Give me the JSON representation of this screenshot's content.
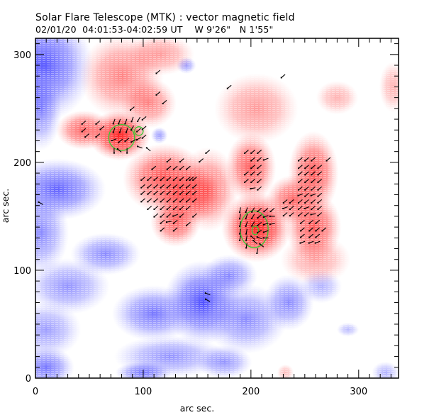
{
  "header": {
    "title": "Solar Flare Telescope (MTK) : vector magnetic field",
    "date": "02/01/20",
    "time_range": "04:01:53-04:02:59 UT",
    "position_w": "W 9'26\"",
    "position_n": "N 1'55\""
  },
  "chart_data": {
    "type": "heatmap",
    "title": "Solar Flare Telescope (MTK) : vector magnetic field",
    "subtitle": "02/01/20  04:01:53-04:02:59 UT    W 9'26\"   N 1'55\"",
    "xlabel": "arc sec.",
    "ylabel": "arc sec.",
    "xlim": [
      0,
      337
    ],
    "ylim": [
      0,
      315
    ],
    "x_ticks_major": [
      0,
      100,
      200,
      300
    ],
    "y_ticks_major": [
      0,
      100,
      200,
      300
    ],
    "x_tick_labels": [
      "0",
      "100",
      "200",
      "300"
    ],
    "y_tick_labels": [
      "0",
      "100",
      "200",
      "300"
    ],
    "minor_tick_step": 10,
    "colors": {
      "positive_polarity": "#ff3030",
      "negative_polarity": "#4040ff",
      "contour": "#33cc33",
      "vector": "#000000",
      "frame": "#000000"
    },
    "positive_regions": [
      {
        "x": 78,
        "y": 225,
        "rx": 22,
        "ry": 18,
        "strength": 1.0
      },
      {
        "x": 45,
        "y": 230,
        "rx": 20,
        "ry": 14,
        "strength": 0.7
      },
      {
        "x": 80,
        "y": 280,
        "rx": 30,
        "ry": 30,
        "strength": 0.55
      },
      {
        "x": 115,
        "y": 300,
        "rx": 25,
        "ry": 15,
        "strength": 0.45
      },
      {
        "x": 105,
        "y": 255,
        "rx": 20,
        "ry": 18,
        "strength": 0.55
      },
      {
        "x": 120,
        "y": 185,
        "rx": 30,
        "ry": 25,
        "strength": 0.8
      },
      {
        "x": 140,
        "y": 170,
        "rx": 25,
        "ry": 22,
        "strength": 0.8
      },
      {
        "x": 130,
        "y": 145,
        "rx": 18,
        "ry": 18,
        "strength": 0.7
      },
      {
        "x": 160,
        "y": 175,
        "rx": 22,
        "ry": 30,
        "strength": 0.6
      },
      {
        "x": 205,
        "y": 140,
        "rx": 25,
        "ry": 25,
        "strength": 1.0
      },
      {
        "x": 200,
        "y": 195,
        "rx": 18,
        "ry": 25,
        "strength": 0.75
      },
      {
        "x": 205,
        "y": 250,
        "rx": 30,
        "ry": 25,
        "strength": 0.45
      },
      {
        "x": 240,
        "y": 165,
        "rx": 20,
        "ry": 18,
        "strength": 0.7
      },
      {
        "x": 258,
        "y": 190,
        "rx": 18,
        "ry": 30,
        "strength": 0.75
      },
      {
        "x": 258,
        "y": 140,
        "rx": 20,
        "ry": 25,
        "strength": 0.75
      },
      {
        "x": 260,
        "y": 110,
        "rx": 25,
        "ry": 18,
        "strength": 0.4
      },
      {
        "x": 280,
        "y": 260,
        "rx": 15,
        "ry": 12,
        "strength": 0.35
      },
      {
        "x": 332,
        "y": 270,
        "rx": 10,
        "ry": 18,
        "strength": 0.35
      },
      {
        "x": 232,
        "y": 5,
        "rx": 6,
        "ry": 6,
        "strength": 0.3
      }
    ],
    "negative_regions": [
      {
        "x": 8,
        "y": 290,
        "rx": 35,
        "ry": 40,
        "strength": 0.85
      },
      {
        "x": 5,
        "y": 250,
        "rx": 15,
        "ry": 30,
        "strength": 0.6
      },
      {
        "x": 20,
        "y": 175,
        "rx": 35,
        "ry": 22,
        "strength": 0.8
      },
      {
        "x": 5,
        "y": 135,
        "rx": 20,
        "ry": 30,
        "strength": 0.6
      },
      {
        "x": 65,
        "y": 115,
        "rx": 25,
        "ry": 15,
        "strength": 0.6
      },
      {
        "x": 30,
        "y": 85,
        "rx": 30,
        "ry": 20,
        "strength": 0.55
      },
      {
        "x": 10,
        "y": 45,
        "rx": 25,
        "ry": 20,
        "strength": 0.5
      },
      {
        "x": 110,
        "y": 60,
        "rx": 30,
        "ry": 20,
        "strength": 0.7
      },
      {
        "x": 155,
        "y": 70,
        "rx": 28,
        "ry": 30,
        "strength": 0.9
      },
      {
        "x": 180,
        "y": 95,
        "rx": 20,
        "ry": 15,
        "strength": 0.6
      },
      {
        "x": 195,
        "y": 55,
        "rx": 30,
        "ry": 25,
        "strength": 0.6
      },
      {
        "x": 235,
        "y": 70,
        "rx": 18,
        "ry": 20,
        "strength": 0.6
      },
      {
        "x": 125,
        "y": 20,
        "rx": 40,
        "ry": 15,
        "strength": 0.55
      },
      {
        "x": 100,
        "y": 5,
        "rx": 20,
        "ry": 8,
        "strength": 0.7
      },
      {
        "x": 175,
        "y": 15,
        "rx": 20,
        "ry": 12,
        "strength": 0.55
      },
      {
        "x": 10,
        "y": 10,
        "rx": 20,
        "ry": 15,
        "strength": 0.7
      },
      {
        "x": 265,
        "y": 85,
        "rx": 15,
        "ry": 12,
        "strength": 0.4
      },
      {
        "x": 325,
        "y": 5,
        "rx": 10,
        "ry": 8,
        "strength": 0.4
      },
      {
        "x": 115,
        "y": 225,
        "rx": 6,
        "ry": 6,
        "strength": 0.5
      },
      {
        "x": 140,
        "y": 290,
        "rx": 7,
        "ry": 6,
        "strength": 0.5
      },
      {
        "x": 212,
        "y": 150,
        "rx": 6,
        "ry": 6,
        "strength": 0.5
      },
      {
        "x": 290,
        "y": 45,
        "rx": 8,
        "ry": 5,
        "strength": 0.35
      }
    ],
    "contours": [
      {
        "x": 80,
        "y": 223,
        "rx": 12,
        "ry": 12
      },
      {
        "x": 96,
        "y": 229,
        "rx": 4,
        "ry": 4
      },
      {
        "x": 203,
        "y": 138,
        "rx": 13,
        "ry": 17
      },
      {
        "x": 204,
        "y": 137,
        "rx": 3,
        "ry": 4
      }
    ],
    "vectors": [
      [
        114,
        284,
        40
      ],
      [
        114,
        264,
        40
      ],
      [
        120,
        256,
        40
      ],
      [
        90,
        250,
        40
      ],
      [
        180,
        270,
        40
      ],
      [
        160,
        210,
        40
      ],
      [
        230,
        280,
        40
      ],
      [
        145,
        185,
        40
      ],
      [
        5,
        162,
        -30
      ],
      [
        73,
        238,
        70
      ],
      [
        78,
        238,
        70
      ],
      [
        84,
        238,
        70
      ],
      [
        90,
        240,
        70
      ],
      [
        96,
        240,
        60
      ],
      [
        101,
        241,
        40
      ],
      [
        73,
        230,
        70
      ],
      [
        79,
        230,
        70
      ],
      [
        85,
        230,
        70
      ],
      [
        90,
        232,
        60
      ],
      [
        96,
        230,
        40
      ],
      [
        101,
        232,
        40
      ],
      [
        73,
        221,
        20
      ],
      [
        79,
        220,
        40
      ],
      [
        85,
        221,
        40
      ],
      [
        91,
        220,
        30
      ],
      [
        96,
        222,
        30
      ],
      [
        101,
        224,
        40
      ],
      [
        78,
        211,
        -40
      ],
      [
        85,
        211,
        90
      ],
      [
        73,
        211,
        90
      ],
      [
        97,
        214,
        -20
      ],
      [
        105,
        212,
        -40
      ],
      [
        58,
        237,
        40
      ],
      [
        62,
        232,
        40
      ],
      [
        58,
        225,
        40
      ],
      [
        45,
        230,
        40
      ],
      [
        48,
        225,
        40
      ],
      [
        45,
        237,
        40
      ],
      [
        110,
        195,
        40
      ],
      [
        124,
        195,
        40
      ],
      [
        130,
        195,
        40
      ],
      [
        136,
        195,
        40
      ],
      [
        142,
        195,
        40
      ],
      [
        136,
        202,
        40
      ],
      [
        154,
        202,
        40
      ],
      [
        124,
        202,
        40
      ],
      [
        100,
        185,
        40
      ],
      [
        106,
        185,
        40
      ],
      [
        112,
        185,
        40
      ],
      [
        118,
        185,
        40
      ],
      [
        124,
        185,
        40
      ],
      [
        130,
        185,
        40
      ],
      [
        136,
        185,
        40
      ],
      [
        142,
        185,
        40
      ],
      [
        148,
        185,
        40
      ],
      [
        100,
        178,
        40
      ],
      [
        106,
        178,
        40
      ],
      [
        112,
        178,
        40
      ],
      [
        118,
        178,
        40
      ],
      [
        124,
        178,
        40
      ],
      [
        130,
        178,
        40
      ],
      [
        136,
        178,
        40
      ],
      [
        142,
        178,
        40
      ],
      [
        148,
        178,
        40
      ],
      [
        100,
        172,
        40
      ],
      [
        106,
        172,
        40
      ],
      [
        112,
        172,
        40
      ],
      [
        118,
        172,
        40
      ],
      [
        124,
        172,
        40
      ],
      [
        130,
        172,
        40
      ],
      [
        136,
        172,
        40
      ],
      [
        142,
        172,
        40
      ],
      [
        148,
        172,
        40
      ],
      [
        100,
        165,
        40
      ],
      [
        106,
        165,
        40
      ],
      [
        112,
        165,
        40
      ],
      [
        118,
        165,
        40
      ],
      [
        124,
        165,
        40
      ],
      [
        130,
        165,
        40
      ],
      [
        136,
        165,
        40
      ],
      [
        142,
        165,
        40
      ],
      [
        148,
        165,
        40
      ],
      [
        106,
        158,
        40
      ],
      [
        112,
        158,
        40
      ],
      [
        118,
        158,
        40
      ],
      [
        124,
        158,
        40
      ],
      [
        130,
        158,
        40
      ],
      [
        136,
        158,
        40
      ],
      [
        142,
        158,
        40
      ],
      [
        112,
        151,
        40
      ],
      [
        118,
        151,
        40
      ],
      [
        124,
        151,
        40
      ],
      [
        130,
        151,
        20
      ],
      [
        136,
        151,
        40
      ],
      [
        148,
        151,
        40
      ],
      [
        118,
        145,
        40
      ],
      [
        124,
        145,
        10
      ],
      [
        130,
        145,
        40
      ],
      [
        118,
        138,
        40
      ],
      [
        130,
        138,
        40
      ],
      [
        142,
        143,
        40
      ],
      [
        196,
        210,
        40
      ],
      [
        202,
        210,
        40
      ],
      [
        208,
        210,
        40
      ],
      [
        202,
        203,
        40
      ],
      [
        208,
        203,
        40
      ],
      [
        214,
        203,
        20
      ],
      [
        202,
        196,
        40
      ],
      [
        208,
        196,
        40
      ],
      [
        196,
        190,
        40
      ],
      [
        202,
        190,
        40
      ],
      [
        208,
        190,
        40
      ],
      [
        196,
        183,
        40
      ],
      [
        202,
        183,
        40
      ],
      [
        208,
        183,
        40
      ],
      [
        202,
        176,
        10
      ],
      [
        208,
        176,
        40
      ],
      [
        246,
        203,
        40
      ],
      [
        252,
        203,
        40
      ],
      [
        258,
        203,
        40
      ],
      [
        272,
        203,
        40
      ],
      [
        246,
        196,
        40
      ],
      [
        252,
        196,
        40
      ],
      [
        258,
        196,
        40
      ],
      [
        264,
        196,
        40
      ],
      [
        246,
        190,
        40
      ],
      [
        252,
        190,
        40
      ],
      [
        258,
        190,
        40
      ],
      [
        264,
        190,
        40
      ],
      [
        246,
        183,
        40
      ],
      [
        252,
        183,
        40
      ],
      [
        258,
        183,
        40
      ],
      [
        264,
        183,
        40
      ],
      [
        246,
        176,
        40
      ],
      [
        252,
        176,
        40
      ],
      [
        258,
        176,
        40
      ],
      [
        264,
        176,
        40
      ],
      [
        246,
        170,
        20
      ],
      [
        252,
        170,
        40
      ],
      [
        258,
        170,
        20
      ],
      [
        264,
        170,
        40
      ],
      [
        232,
        164,
        40
      ],
      [
        238,
        164,
        40
      ],
      [
        246,
        164,
        40
      ],
      [
        252,
        164,
        40
      ],
      [
        258,
        164,
        40
      ],
      [
        264,
        164,
        40
      ],
      [
        232,
        158,
        20
      ],
      [
        238,
        158,
        40
      ],
      [
        246,
        158,
        40
      ],
      [
        252,
        158,
        20
      ],
      [
        258,
        158,
        40
      ],
      [
        264,
        158,
        40
      ],
      [
        232,
        152,
        40
      ],
      [
        238,
        152,
        40
      ],
      [
        246,
        152,
        40
      ],
      [
        252,
        152,
        40
      ],
      [
        258,
        152,
        10
      ],
      [
        264,
        152,
        40
      ],
      [
        190,
        156,
        80
      ],
      [
        196,
        156,
        70
      ],
      [
        202,
        156,
        60
      ],
      [
        208,
        156,
        40
      ],
      [
        214,
        156,
        40
      ],
      [
        220,
        156,
        40
      ],
      [
        190,
        150,
        80
      ],
      [
        196,
        150,
        70
      ],
      [
        202,
        150,
        60
      ],
      [
        208,
        150,
        40
      ],
      [
        214,
        150,
        20
      ],
      [
        220,
        150,
        0
      ],
      [
        190,
        143,
        80
      ],
      [
        196,
        143,
        70
      ],
      [
        202,
        143,
        60
      ],
      [
        208,
        143,
        40
      ],
      [
        214,
        143,
        20
      ],
      [
        220,
        143,
        10
      ],
      [
        190,
        136,
        80
      ],
      [
        196,
        136,
        80
      ],
      [
        208,
        136,
        30
      ],
      [
        214,
        136,
        20
      ],
      [
        190,
        130,
        80
      ],
      [
        196,
        130,
        80
      ],
      [
        202,
        130,
        -40
      ],
      [
        208,
        130,
        -20
      ],
      [
        214,
        130,
        0
      ],
      [
        196,
        123,
        80
      ],
      [
        204,
        126,
        -40
      ],
      [
        210,
        123,
        -40
      ],
      [
        206,
        118,
        80
      ],
      [
        248,
        145,
        40
      ],
      [
        256,
        145,
        40
      ],
      [
        262,
        145,
        40
      ],
      [
        248,
        138,
        40
      ],
      [
        256,
        138,
        40
      ],
      [
        262,
        138,
        40
      ],
      [
        268,
        138,
        40
      ],
      [
        248,
        132,
        40
      ],
      [
        256,
        132,
        40
      ],
      [
        262,
        132,
        40
      ],
      [
        248,
        126,
        20
      ],
      [
        256,
        126,
        20
      ],
      [
        262,
        126,
        20
      ],
      [
        160,
        78,
        -20
      ],
      [
        160,
        72,
        -30
      ]
    ]
  }
}
